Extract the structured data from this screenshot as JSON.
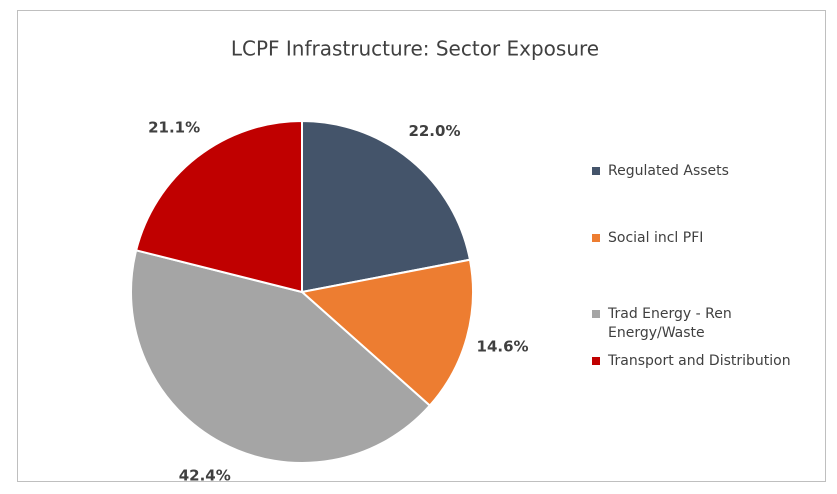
{
  "chart_data": {
    "type": "pie",
    "title": "LCPF Infrastructure: Sector Exposure",
    "categories": [
      "Regulated Assets",
      "Social incl PFI",
      "Trad Energy - Ren Energy/Waste",
      "Transport and Distribution"
    ],
    "values": [
      22.0,
      14.6,
      42.4,
      21.1
    ],
    "value_labels": [
      "22.0%",
      "14.6%",
      "42.4%",
      "21.1%"
    ],
    "colors": [
      "#44546a",
      "#ed7d31",
      "#a5a5a5",
      "#c00000"
    ],
    "legend": "right"
  }
}
